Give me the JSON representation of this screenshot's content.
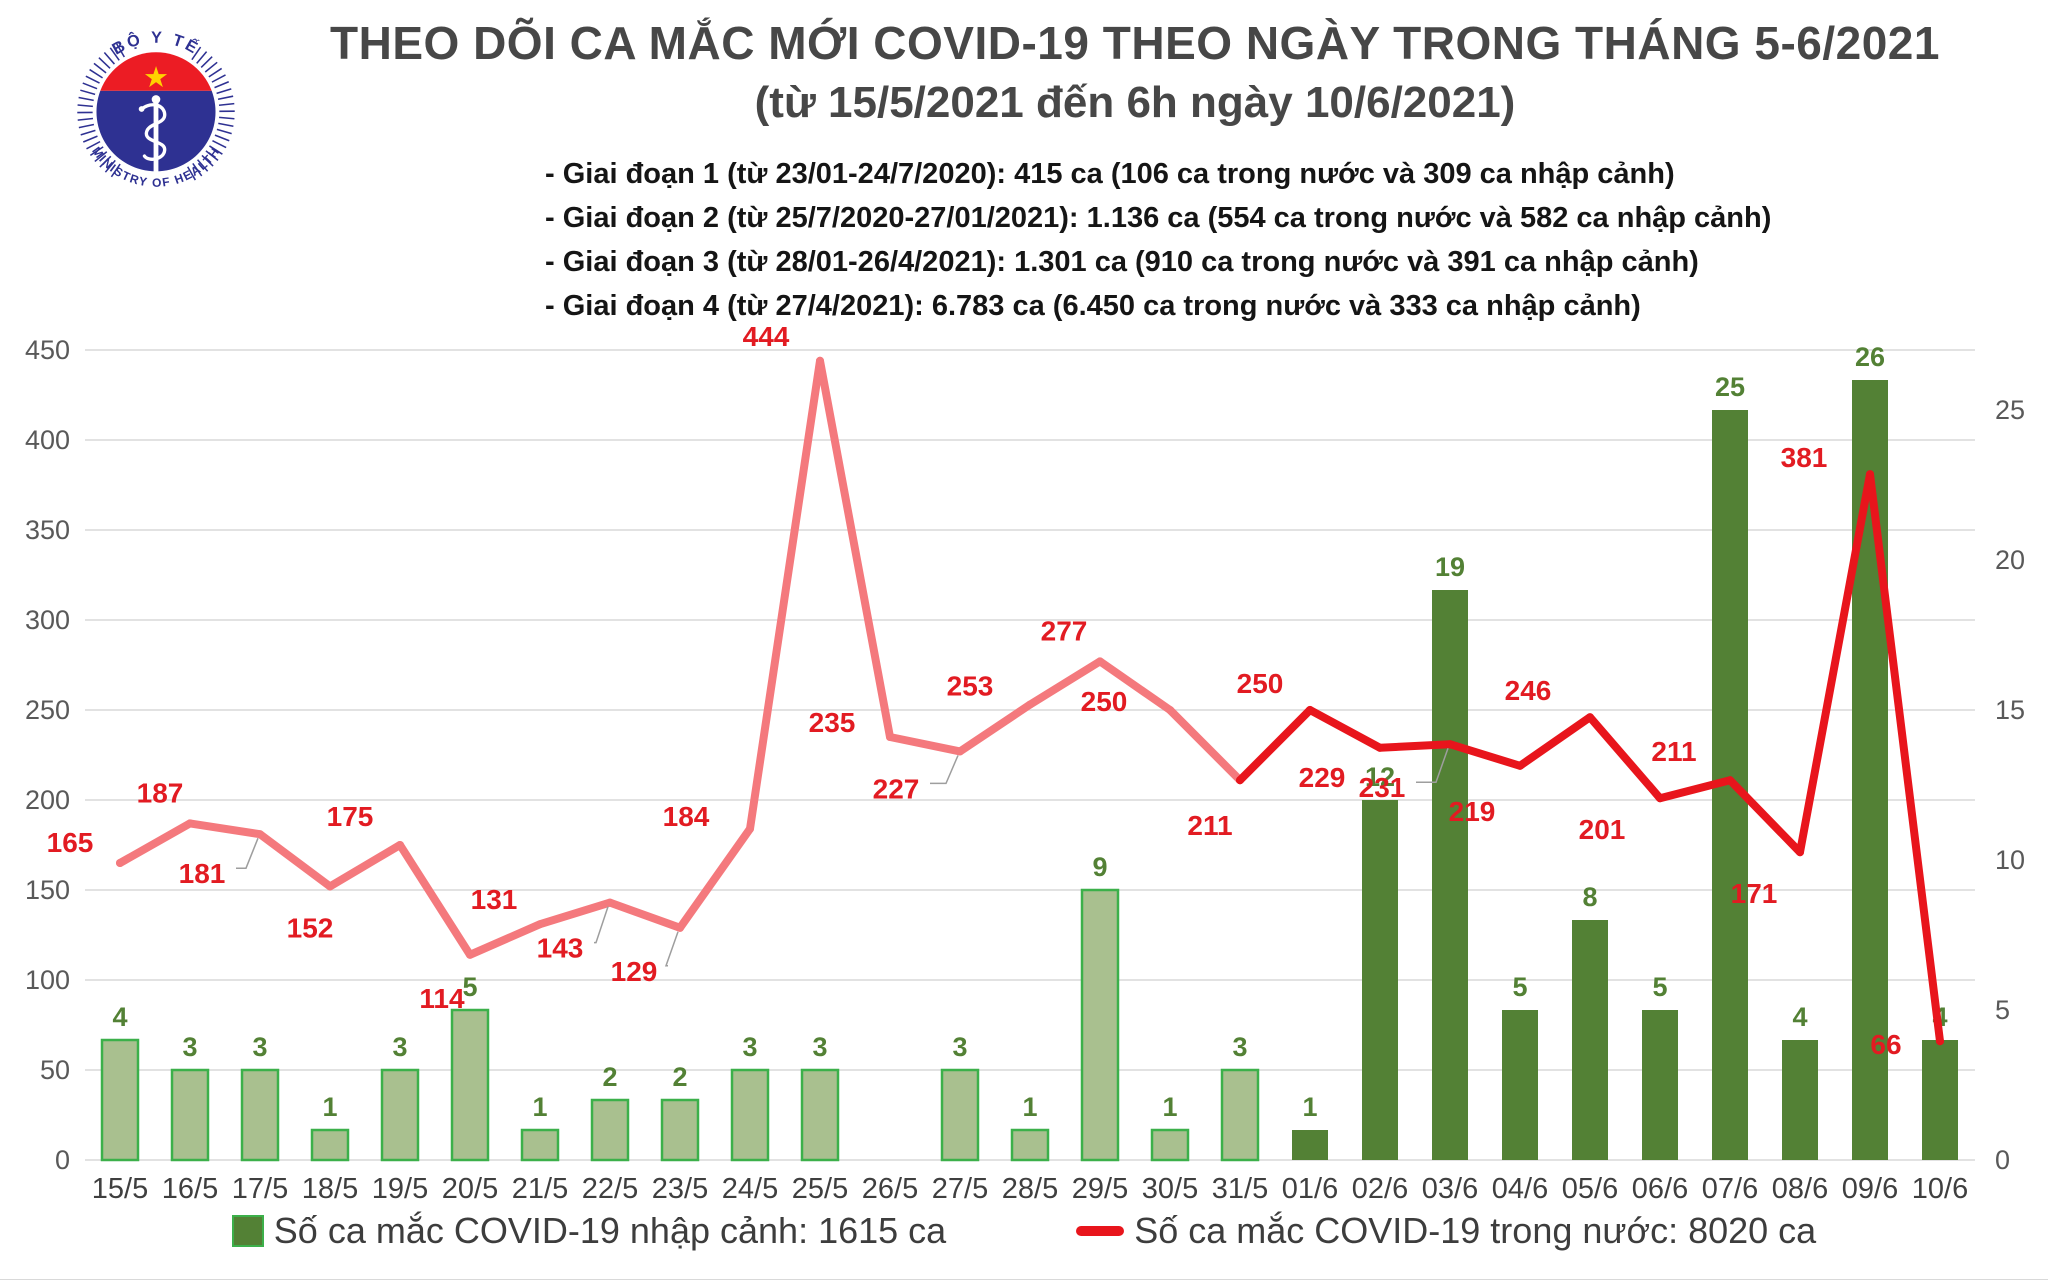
{
  "logo": {
    "top_text": "BỘ Y TẾ",
    "bottom_text": "MINISTRY OF HEALTH"
  },
  "title": {
    "line1": "THEO DÕI CA MẮC MỚI COVID-19 THEO NGÀY TRONG THÁNG 5-6/2021",
    "line2": "(từ 15/5/2021 đến 6h ngày 10/6/2021)"
  },
  "subtitles": [
    "- Giai đoạn 1 (từ 23/01-24/7/2020): 415 ca (106 ca trong nước và 309 ca nhập cảnh)",
    "- Giai đoạn 2 (từ 25/7/2020-27/01/2021): 1.136 ca (554 ca trong nước và 582 ca nhập cảnh)",
    "- Giai đoạn 3 (từ 28/01-26/4/2021): 1.301 ca (910 ca trong nước và 391 ca nhập cảnh)",
    "- Giai đoạn 4 (từ 27/4/2021): 6.783 ca (6.450 ca trong nước và 333 ca nhập cảnh)"
  ],
  "legend": {
    "bars_label": "Số ca mắc COVID-19 nhập cảnh: 1615 ca",
    "line_label": "Số ca mắc COVID-19 trong nước: 8020 ca"
  },
  "colors": {
    "bar_may_fill": "#a9c08f",
    "bar_may_border": "#3cb04a",
    "bar_june_fill": "#538135",
    "bar_label": "#538135",
    "line_may": "#f4797d",
    "line_june": "#e8151c",
    "line_label": "#e21b22",
    "connector": "#9e9e9e",
    "grid": "#d9d9d9",
    "axis_text": "#595959",
    "x_axis_text": "#3f3f3f",
    "logo_blue": "#2e3192",
    "logo_red": "#ec1c24",
    "logo_star": "#ffd100"
  },
  "chart_data": {
    "type": "bar",
    "title": "THEO DÕI CA MẮC MỚI COVID-19 THEO NGÀY TRONG THÁNG 5-6/2021 (từ 15/5/2021 đến 6h ngày 10/6/2021)",
    "categories": [
      "15/5",
      "16/5",
      "17/5",
      "18/5",
      "19/5",
      "20/5",
      "21/5",
      "22/5",
      "23/5",
      "24/5",
      "25/5",
      "26/5",
      "27/5",
      "28/5",
      "29/5",
      "30/5",
      "31/5",
      "01/6",
      "02/6",
      "03/6",
      "04/6",
      "05/6",
      "06/6",
      "07/6",
      "08/6",
      "09/6",
      "10/6"
    ],
    "series": [
      {
        "name": "Số ca mắc COVID-19 nhập cảnh",
        "type": "bar",
        "axis": "right",
        "values": [
          4,
          3,
          3,
          1,
          3,
          5,
          1,
          2,
          2,
          3,
          3,
          null,
          3,
          1,
          9,
          1,
          3,
          1,
          12,
          19,
          5,
          8,
          5,
          25,
          4,
          26,
          4
        ],
        "total_label": "1615 ca"
      },
      {
        "name": "Số ca mắc COVID-19 trong nước",
        "type": "line",
        "axis": "left",
        "values": [
          165,
          187,
          181,
          152,
          175,
          114,
          131,
          143,
          129,
          184,
          444,
          235,
          227,
          253,
          277,
          250,
          211,
          250,
          229,
          231,
          219,
          246,
          201,
          211,
          171,
          381,
          66
        ],
        "total_label": "8020 ca"
      }
    ],
    "left_axis": {
      "min": 0,
      "max": 450,
      "step": 50
    },
    "right_axis": {
      "min": 0,
      "max": 27,
      "ticks": [
        0,
        5,
        10,
        15,
        20,
        25
      ]
    },
    "grid": "horizontal",
    "legend_position": "bottom",
    "bar_dark_from_index": 17,
    "line_red_from_index": 16,
    "callouts": [
      2,
      7,
      8,
      12,
      19
    ]
  }
}
